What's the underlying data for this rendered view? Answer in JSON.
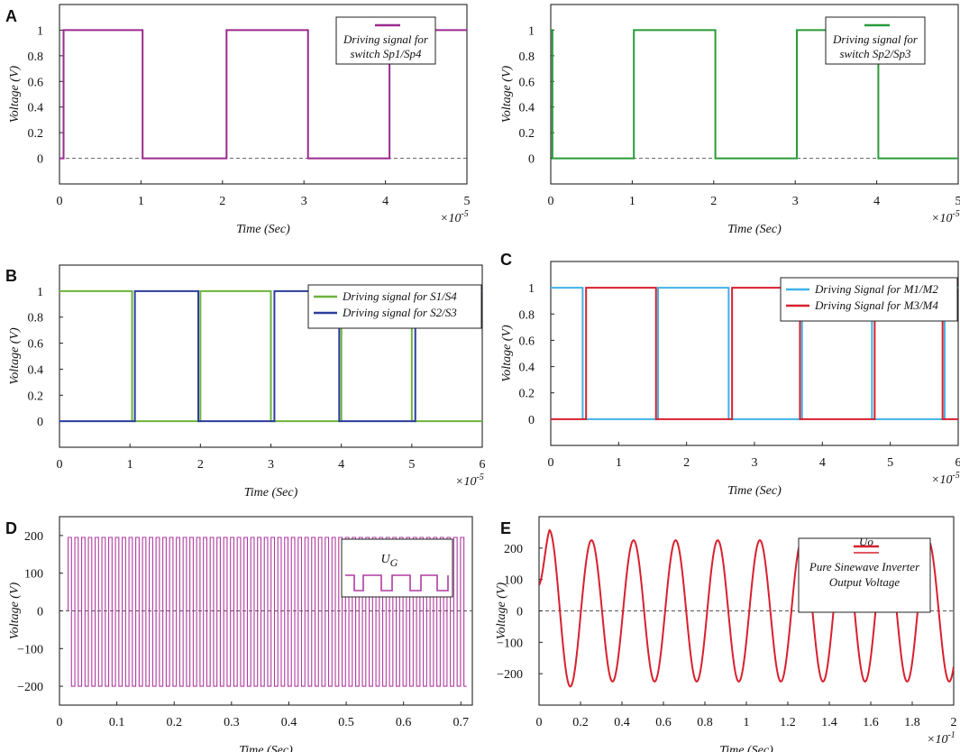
{
  "chart_data": [
    {
      "id": "A-left",
      "panel_label": "A",
      "type": "line",
      "xlabel": "Time (Sec)",
      "ylabel": "Voltage (V)",
      "xlim": [
        0,
        5
      ],
      "ylim": [
        -0.2,
        1.2
      ],
      "xticks": [
        0,
        1,
        2,
        3,
        4,
        5
      ],
      "xtick_labels": [
        "0",
        "1",
        "2",
        "3",
        "4",
        "5"
      ],
      "yticks": [
        0,
        0.2,
        0.4,
        0.6,
        0.8,
        1
      ],
      "ytick_labels": [
        "0",
        "0.2",
        "0.4",
        "0.6",
        "0.8",
        "1"
      ],
      "x_multiplier": "×10",
      "x_exponent": "-5",
      "zero_line": true,
      "legend": {
        "position": "top-right",
        "style": "stacked"
      },
      "series": [
        {
          "name": "Driving signal for switch Sp1/Sp4",
          "legend_lines": [
            "Driving signal for",
            "switch Sp1/Sp4"
          ],
          "color": "#9b2a8f",
          "x": [
            0,
            0.05,
            0.05,
            1.02,
            1.02,
            2.05,
            2.05,
            3.05,
            3.05,
            4.05,
            4.05,
            5.3
          ],
          "y": [
            0,
            0,
            1,
            1,
            0,
            0,
            1,
            1,
            0,
            0,
            1,
            1
          ]
        }
      ]
    },
    {
      "id": "A-right",
      "panel_label": "",
      "type": "line",
      "xlabel": "Time (Sec)",
      "ylabel": "Voltage (V)",
      "xlim": [
        0,
        5
      ],
      "ylim": [
        -0.2,
        1.2
      ],
      "xticks": [
        0,
        1,
        2,
        3,
        4,
        5
      ],
      "xtick_labels": [
        "0",
        "1",
        "2",
        "3",
        "4",
        "5"
      ],
      "yticks": [
        0,
        0.2,
        0.4,
        0.6,
        0.8,
        1
      ],
      "ytick_labels": [
        "0",
        "0.2",
        "0.4",
        "0.6",
        "0.8",
        "1"
      ],
      "x_multiplier": "×10",
      "x_exponent": "-5",
      "zero_line": true,
      "legend": {
        "position": "top-right",
        "style": "stacked"
      },
      "series": [
        {
          "name": "Driving signal for switch Sp2/Sp3",
          "legend_lines": [
            "Driving signal for",
            "switch Sp2/Sp3"
          ],
          "color": "#2a9a3a",
          "x": [
            -0.03,
            0.02,
            0.02,
            1.02,
            1.02,
            2.02,
            2.02,
            3.02,
            3.02,
            4.02,
            4.02,
            5.05
          ],
          "y": [
            1,
            1,
            0,
            0,
            1,
            1,
            0,
            0,
            1,
            1,
            0,
            0
          ]
        }
      ]
    },
    {
      "id": "B",
      "panel_label": "B",
      "type": "line",
      "xlabel": "Time (Sec)",
      "ylabel": "Voltage (V)",
      "xlim": [
        0,
        6
      ],
      "ylim": [
        -0.2,
        1.2
      ],
      "xticks": [
        0,
        1,
        2,
        3,
        4,
        5,
        6
      ],
      "xtick_labels": [
        "0",
        "1",
        "2",
        "3",
        "4",
        "5",
        "6"
      ],
      "yticks": [
        0,
        0.2,
        0.4,
        0.6,
        0.8,
        1
      ],
      "ytick_labels": [
        "0",
        "0.2",
        "0.4",
        "0.6",
        "0.8",
        "1"
      ],
      "x_multiplier": "×10",
      "x_exponent": "-5",
      "zero_line": false,
      "legend": {
        "position": "top-right",
        "style": "inline"
      },
      "series": [
        {
          "name": "Driving signal for S1/S4",
          "legend_lines": [
            "Driving signal for S1/S4"
          ],
          "color": "#6cb43a",
          "x": [
            0,
            1.03,
            1.03,
            2.0,
            2.0,
            3.0,
            3.0,
            4.0,
            4.0,
            5.0,
            5.0,
            6.0
          ],
          "y": [
            1,
            1,
            0,
            0,
            1,
            1,
            0,
            0,
            1,
            1,
            0,
            0
          ]
        },
        {
          "name": "Driving signal for S2/S3",
          "legend_lines": [
            "Driving signal for S2/S3"
          ],
          "color": "#2b3d9e",
          "x": [
            0,
            1.07,
            1.07,
            1.97,
            1.97,
            3.05,
            3.05,
            3.97,
            3.97,
            5.05,
            5.05,
            6.0
          ],
          "y": [
            0,
            0,
            1,
            1,
            0,
            0,
            1,
            1,
            0,
            0,
            1,
            1
          ]
        }
      ]
    },
    {
      "id": "C",
      "panel_label": "C",
      "type": "line",
      "xlabel": "Time (Sec)",
      "ylabel": "Voltage (V)",
      "xlim": [
        0,
        6
      ],
      "ylim": [
        -0.2,
        1.2
      ],
      "xticks": [
        0,
        1,
        2,
        3,
        4,
        5,
        6
      ],
      "xtick_labels": [
        "0",
        "1",
        "2",
        "3",
        "4",
        "5",
        "6"
      ],
      "yticks": [
        0,
        0.2,
        0.4,
        0.6,
        0.8,
        1
      ],
      "ytick_labels": [
        "0",
        "0.2",
        "0.4",
        "0.6",
        "0.8",
        "1"
      ],
      "x_multiplier": "×10",
      "x_exponent": "-5",
      "zero_line": false,
      "legend": {
        "position": "top-right",
        "style": "inline"
      },
      "series": [
        {
          "name": "Driving Signal for M1/M2",
          "legend_lines": [
            "Driving Signal for M1/M2"
          ],
          "color": "#3fb2e8",
          "x": [
            0,
            0.47,
            0.47,
            1.58,
            1.58,
            2.62,
            2.62,
            3.7,
            3.7,
            4.73,
            4.73,
            5.8,
            5.8,
            6.0
          ],
          "y": [
            1,
            1,
            0,
            0,
            1,
            1,
            0,
            0,
            1,
            1,
            0,
            0,
            1,
            1
          ]
        },
        {
          "name": "Driving Signal for M3/M4",
          "legend_lines": [
            "Driving Signal for M3/M4"
          ],
          "color": "#d8202e",
          "x": [
            0,
            0.52,
            0.52,
            1.55,
            1.55,
            2.67,
            2.67,
            3.67,
            3.67,
            4.77,
            4.77,
            5.77,
            5.77,
            6.0
          ],
          "y": [
            0,
            0,
            1,
            1,
            0,
            0,
            1,
            1,
            0,
            0,
            1,
            1,
            0,
            0
          ]
        }
      ]
    },
    {
      "id": "D",
      "panel_label": "D",
      "type": "line",
      "xlabel": "Time (Sec)",
      "ylabel": "Voltage (V)",
      "xlim": [
        0,
        0.72
      ],
      "ylim": [
        -250,
        250
      ],
      "xticks": [
        0,
        0.1,
        0.2,
        0.3,
        0.4,
        0.5,
        0.6,
        0.7
      ],
      "xtick_labels": [
        "0",
        "0.1",
        "0.2",
        "0.3",
        "0.4",
        "0.5",
        "0.6",
        "0.7"
      ],
      "yticks": [
        -200,
        -100,
        0,
        100,
        200
      ],
      "ytick_labels": [
        "−200",
        "−100",
        "0",
        "100",
        "200"
      ],
      "x_multiplier": "",
      "x_exponent": "",
      "zero_line": true,
      "legend": {
        "position": "top-right",
        "style": "inset"
      },
      "inset_label": "U",
      "inset_subscript": "G",
      "pulse_wave": {
        "start": 0.015,
        "end": 0.71,
        "period": 0.0118,
        "duty": 0.5,
        "high": 195,
        "low": -200
      },
      "series": [
        {
          "name": "UG",
          "color": "#b03aa0"
        }
      ]
    },
    {
      "id": "E",
      "panel_label": "E",
      "type": "line",
      "xlabel": "Time (Sec)",
      "ylabel": "Voltage (V)",
      "xlim": [
        0,
        2
      ],
      "ylim": [
        -300,
        300
      ],
      "xticks": [
        0,
        0.2,
        0.4,
        0.6,
        0.8,
        1,
        1.2,
        1.4,
        1.6,
        1.8,
        2
      ],
      "xtick_labels": [
        "0",
        "0.2",
        "0.4",
        "0.6",
        "0.8",
        "1",
        "1.2",
        "1.4",
        "1.6",
        "1.8",
        "2"
      ],
      "yticks": [
        -200,
        -100,
        0,
        100,
        200
      ],
      "ytick_labels": [
        "−200",
        "−100",
        "0",
        "100",
        "200"
      ],
      "x_multiplier": "×10",
      "x_exponent": "-1",
      "zero_line": true,
      "legend": {
        "position": "top-right",
        "style": "stacked"
      },
      "sine_wave": {
        "period": 0.203,
        "amplitude": 225,
        "first_peak_x": 0.05,
        "first_peak": 265,
        "first_trough_x": 0.15,
        "first_trough": -235
      },
      "series": [
        {
          "name": "Uo",
          "legend_lines": [
            "Uo",
            "Pure Sinewave Inverter",
            "Output Voltage"
          ],
          "color": "#d8202e"
        }
      ]
    }
  ]
}
